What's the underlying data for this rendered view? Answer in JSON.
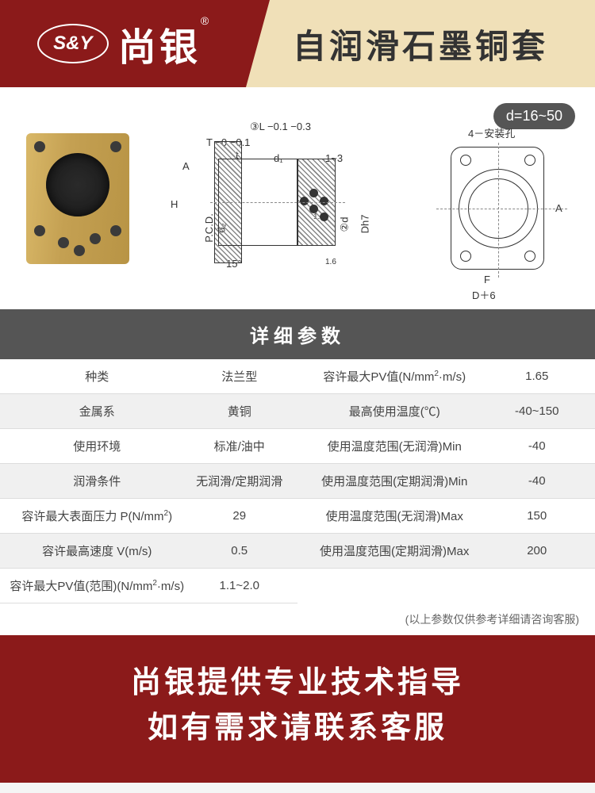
{
  "header": {
    "logo_initials": "S&Y",
    "brand_name": "尚银",
    "reg_mark": "®",
    "product_title": "自润滑石墨铜套"
  },
  "diagram": {
    "dim_range": "d=16~50",
    "labels": {
      "L_tol": "③L −0.1 −0.3",
      "T_tol": "T −0 −0.1",
      "t": "t",
      "A": "A",
      "d1": "d₁",
      "range_13": "1~3",
      "H": "H",
      "PCD": "P.C.D.",
      "d2": "d₂",
      "angle": "15°",
      "Dh7": "Dh7",
      "d_inner": "②d",
      "surface1": "1.6",
      "surface2": "1.6",
      "mount_holes": "4－安装孔",
      "F": "F",
      "D6": "D＋6",
      "A_right": "A"
    }
  },
  "spec": {
    "header": "详细参数",
    "left_rows": [
      {
        "label": "种类",
        "value": "法兰型"
      },
      {
        "label": "金属系",
        "value": "黄铜"
      },
      {
        "label": "使用环境",
        "value": "标准/油中"
      },
      {
        "label": "润滑条件",
        "value": "无润滑/定期润滑"
      },
      {
        "label": "容许最大表面压力 P(N/mm²)",
        "value": "29"
      },
      {
        "label": "容许最高速度 V(m/s)",
        "value": "0.5"
      },
      {
        "label": "容许最大PV值(范围)(N/mm²·m/s)",
        "value": "1.1~2.0"
      }
    ],
    "right_rows": [
      {
        "label": "容许最大PV值(N/mm²·m/s)",
        "value": "1.65"
      },
      {
        "label": "最高使用温度(℃)",
        "value": "-40~150"
      },
      {
        "label": "使用温度范围(无润滑)Min",
        "value": "-40"
      },
      {
        "label": "使用温度范围(定期润滑)Min",
        "value": "-40"
      },
      {
        "label": "使用温度范围(无润滑)Max",
        "value": "150"
      },
      {
        "label": "使用温度范围(定期润滑)Max",
        "value": "200"
      }
    ],
    "note": "(以上参数仅供参考详细请咨询客服)"
  },
  "footer": {
    "line1": "尚银提供专业技术指导",
    "line2": "如有需求请联系客服"
  },
  "colors": {
    "brand_red": "#8b1a1a",
    "header_beige": "#f0e0b8",
    "table_header": "#555555",
    "brass": "#c4a052"
  }
}
